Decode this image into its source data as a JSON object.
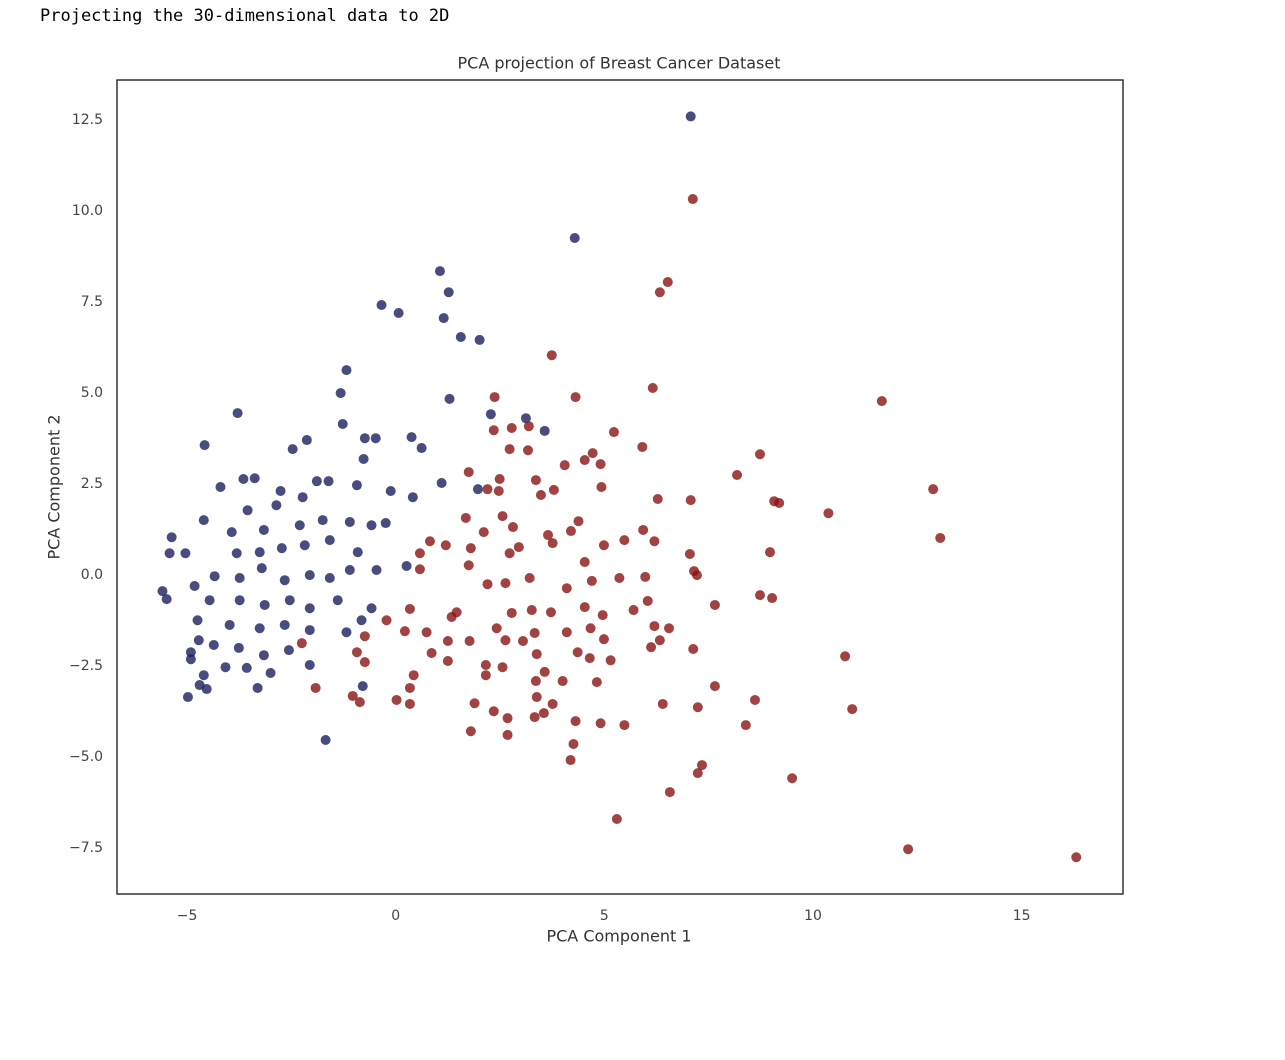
{
  "output_text": "Projecting the 30-dimensional data to 2D",
  "chart_data": {
    "type": "scatter",
    "title": "PCA projection of Breast Cancer Dataset",
    "x_label": "PCA Component 1",
    "y_label": "PCA Component 2",
    "xlim": [
      -6.68,
      17.43
    ],
    "ylim": [
      -8.76,
      13.6
    ],
    "xticks": [
      {
        "value": -5,
        "label": "−5"
      },
      0,
      5,
      10,
      15
    ],
    "yticks": [
      {
        "value": -7.5,
        "label": "−7.5"
      },
      {
        "value": -5,
        "label": "−5.0"
      },
      {
        "value": -2.5,
        "label": "−2.5"
      },
      {
        "value": 0,
        "label": "0.0"
      },
      2.5,
      {
        "value": 5,
        "label": "5.0"
      },
      7.5,
      {
        "value": 10,
        "label": "10.0"
      },
      12.5
    ],
    "grid": false,
    "series": [
      {
        "color": "#1c1f5e",
        "x": [
          7.07,
          4.29,
          1.06,
          1.27,
          -0.34,
          0.07,
          1.15,
          1.56,
          2.01,
          -1.18,
          -1.32,
          1.29,
          2.28,
          3.12,
          3.57,
          -3.79,
          -4.58,
          -1.27,
          -0.74,
          -0.48,
          0.38,
          0.62,
          -2.13,
          -2.47,
          -0.77,
          -4.2,
          -3.38,
          -3.65,
          1.1,
          1.97,
          0.41,
          -0.12,
          -0.93,
          -1.61,
          -1.89,
          -2.76,
          -2.86,
          -2.23,
          -3.55,
          -4.6,
          -5.37,
          -5.42,
          -5.04,
          -5.59,
          -5.49,
          -3.93,
          -3.16,
          -2.3,
          -1.75,
          -1.1,
          -0.58,
          -0.24,
          -3.81,
          -3.26,
          -2.73,
          -2.18,
          -1.58,
          -0.91,
          -0.46,
          0.26,
          -4.34,
          -3.74,
          -3.21,
          -2.66,
          -2.06,
          -1.58,
          -1.1,
          -4.82,
          -4.46,
          -3.74,
          -3.14,
          -2.54,
          -2.06,
          -1.39,
          -0.58,
          -4.75,
          -3.98,
          -3.26,
          -2.66,
          -2.06,
          -1.18,
          -0.82,
          -4.72,
          -4.36,
          -3.76,
          -3.16,
          -2.56,
          -4.91,
          -4.91,
          -4.08,
          -3.57,
          -4.6,
          -4.7,
          -4.53,
          -4.98,
          -3.31,
          -3.0,
          -1.68,
          -0.79,
          -2.06
        ],
        "values": [
          12.6,
          9.26,
          8.35,
          7.77,
          7.42,
          7.2,
          7.06,
          6.54,
          6.46,
          5.63,
          5.0,
          4.84,
          4.42,
          4.31,
          3.96,
          4.45,
          3.57,
          4.15,
          3.76,
          3.76,
          3.79,
          3.49,
          3.71,
          3.46,
          3.19,
          2.42,
          2.66,
          2.64,
          2.53,
          2.36,
          2.14,
          2.31,
          2.47,
          2.58,
          2.58,
          2.31,
          1.92,
          2.14,
          1.78,
          1.51,
          1.04,
          0.6,
          0.6,
          -0.44,
          -0.66,
          1.18,
          1.24,
          1.37,
          1.51,
          1.46,
          1.37,
          1.43,
          0.6,
          0.63,
          0.74,
          0.82,
          0.96,
          0.63,
          0.14,
          0.25,
          -0.03,
          -0.08,
          0.19,
          -0.14,
          0,
          -0.08,
          0.14,
          -0.3,
          -0.69,
          -0.69,
          -0.82,
          -0.69,
          -0.91,
          -0.69,
          -0.91,
          -1.24,
          -1.37,
          -1.46,
          -1.37,
          -1.51,
          -1.57,
          -1.24,
          -1.79,
          -1.92,
          -2.0,
          -2.2,
          -2.06,
          -2.12,
          -2.31,
          -2.53,
          -2.55,
          -2.75,
          -3.02,
          -3.13,
          -3.35,
          -3.1,
          -2.69,
          -4.53,
          -3.05,
          -2.47
        ]
      },
      {
        "color": "#8b1414",
        "x": [
          7.12,
          6.52,
          6.33,
          3.74,
          6.16,
          4.31,
          2.37,
          11.65,
          5.23,
          2.35,
          3.19,
          2.78,
          2.73,
          3.17,
          5.91,
          8.73,
          4.72,
          4.53,
          4.05,
          4.91,
          8.18,
          1.75,
          2.49,
          3.36,
          4.93,
          12.88,
          3.79,
          3.48,
          2.2,
          2.47,
          6.28,
          7.07,
          9.07,
          9.19,
          10.37,
          1.68,
          2.56,
          2.11,
          2.81,
          4.38,
          5.93,
          13.05,
          3.65,
          4.2,
          5.48,
          6.2,
          4.99,
          3.76,
          2.95,
          0.82,
          1.2,
          7.05,
          8.97,
          1.8,
          2.73,
          0.58,
          4.53,
          7.15,
          7.22,
          5.36,
          5.98,
          3.21,
          0.58,
          1.75,
          4.7,
          4.1,
          2.2,
          2.63,
          6.04,
          7.65,
          8.73,
          9.02,
          5.7,
          0.34,
          1.34,
          1.46,
          2.78,
          3.26,
          3.72,
          4.53,
          4.96,
          6.2,
          6.55,
          6.33,
          6.12,
          0.22,
          0.74,
          2.42,
          3.33,
          4.1,
          4.67,
          4.99,
          1.25,
          1.77,
          2.63,
          3.05,
          3.38,
          4.36,
          5.15,
          4.65,
          7.13,
          10.77,
          0.86,
          1.25,
          2.16,
          2.56,
          3.57,
          4.0,
          4.82,
          3.36,
          2.16,
          0.43,
          0.34,
          -1.92,
          -1.03,
          -0.86,
          0.02,
          0.34,
          1.89,
          3.38,
          3.76,
          6.4,
          7.65,
          7.24,
          8.61,
          10.94,
          2.35,
          2.68,
          3.33,
          3.55,
          4.31,
          4.91,
          5.48,
          8.39,
          1.8,
          2.68,
          4.26,
          4.19,
          7.34,
          7.24,
          9.5,
          6.57,
          5.3,
          12.28,
          16.31,
          -0.74,
          -0.93,
          -0.74,
          -0.22,
          -2.25
        ],
        "values": [
          10.33,
          8.05,
          7.77,
          6.04,
          5.14,
          4.89,
          4.89,
          4.78,
          3.93,
          3.98,
          4.09,
          4.04,
          3.46,
          3.43,
          3.52,
          3.32,
          3.35,
          3.16,
          3.02,
          3.05,
          2.75,
          2.83,
          2.64,
          2.61,
          2.42,
          2.36,
          2.34,
          2.2,
          2.36,
          2.31,
          2.09,
          2.06,
          2.03,
          1.98,
          1.7,
          1.57,
          1.62,
          1.18,
          1.32,
          1.48,
          1.24,
          1.02,
          1.1,
          1.21,
          0.96,
          0.93,
          0.82,
          0.88,
          0.77,
          0.93,
          0.82,
          0.58,
          0.63,
          0.74,
          0.6,
          0.6,
          0.36,
          0.11,
          0,
          -0.08,
          -0.05,
          -0.08,
          0.16,
          0.27,
          -0.16,
          -0.36,
          -0.25,
          -0.22,
          -0.71,
          -0.82,
          -0.55,
          -0.63,
          -0.96,
          -0.93,
          -1.15,
          -1.02,
          -1.04,
          -0.96,
          -1.02,
          -0.88,
          -1.1,
          -1.4,
          -1.46,
          -1.79,
          -1.98,
          -1.54,
          -1.57,
          -1.46,
          -1.59,
          -1.57,
          -1.46,
          -1.76,
          -1.81,
          -1.81,
          -1.79,
          -1.81,
          -2.17,
          -2.12,
          -2.34,
          -2.28,
          -2.03,
          -2.23,
          -2.14,
          -2.36,
          -2.47,
          -2.53,
          -2.66,
          -2.91,
          -2.94,
          -2.91,
          -2.75,
          -2.75,
          -3.1,
          -3.1,
          -3.32,
          -3.49,
          -3.43,
          -3.54,
          -3.52,
          -3.35,
          -3.54,
          -3.54,
          -3.05,
          -3.63,
          -3.43,
          -3.68,
          -3.74,
          -3.93,
          -3.9,
          -3.79,
          -4.01,
          -4.07,
          -4.12,
          -4.12,
          -4.29,
          -4.39,
          -4.64,
          -5.08,
          -5.22,
          -5.44,
          -5.58,
          -5.96,
          -6.7,
          -7.53,
          -7.75,
          -1.68,
          -2.12,
          -2.39,
          -1.24,
          -1.87
        ]
      }
    ]
  }
}
